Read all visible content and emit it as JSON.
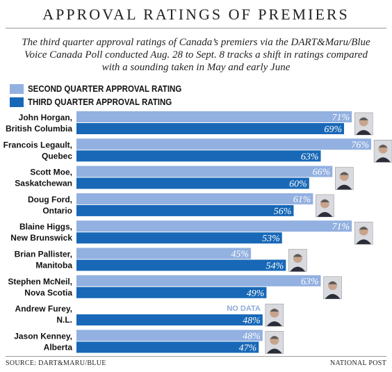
{
  "title": "APPROVAL RATINGS OF PREMIERS",
  "subtitle_lines": [
    "The third quarter approval ratings of Canada’s premiers via the DART&Maru/Blue",
    "Voice Canada Poll conducted Aug. 28 to Sept. 8 tracks a shift in ratings compared",
    "with a sounding taken in May and early June"
  ],
  "legend": {
    "second": "SECOND QUARTER APPROVAL RATING",
    "third": "THIRD QUARTER APPROVAL RATING"
  },
  "source": "SOURCE: DART&MARU/BLUE",
  "credit": "NATIONAL POST",
  "colors": {
    "second": "#92b0e0",
    "third": "#1868b7"
  },
  "chart_data": {
    "type": "bar",
    "orientation": "horizontal",
    "categories": [
      {
        "name": "John Horgan,",
        "region": "British Columbia"
      },
      {
        "name": "Francois Legault,",
        "region": "Quebec"
      },
      {
        "name": "Scott Moe,",
        "region": "Saskatchewan"
      },
      {
        "name": "Doug Ford,",
        "region": "Ontario"
      },
      {
        "name": "Blaine Higgs,",
        "region": "New Brunswick"
      },
      {
        "name": "Brian Pallister,",
        "region": "Manitoba"
      },
      {
        "name": "Stephen McNeil,",
        "region": "Nova Scotia"
      },
      {
        "name": "Andrew Furey,",
        "region": "N.L."
      },
      {
        "name": "Jason Kenney,",
        "region": "Alberta"
      }
    ],
    "series": [
      {
        "name": "SECOND QUARTER APPROVAL RATING",
        "values": [
          71,
          76,
          66,
          61,
          71,
          45,
          63,
          null,
          48
        ]
      },
      {
        "name": "THIRD QUARTER APPROVAL RATING",
        "values": [
          69,
          63,
          60,
          56,
          53,
          54,
          49,
          48,
          47
        ]
      }
    ],
    "labels": {
      "second": [
        "71%",
        "76%",
        "66%",
        "61%",
        "71%",
        "45%",
        "63%",
        "NO DATA",
        "48%"
      ],
      "third": [
        "69%",
        "63%",
        "60%",
        "56%",
        "53%",
        "54%",
        "49%",
        "48%",
        "47%"
      ]
    },
    "xlim": [
      0,
      100
    ]
  }
}
